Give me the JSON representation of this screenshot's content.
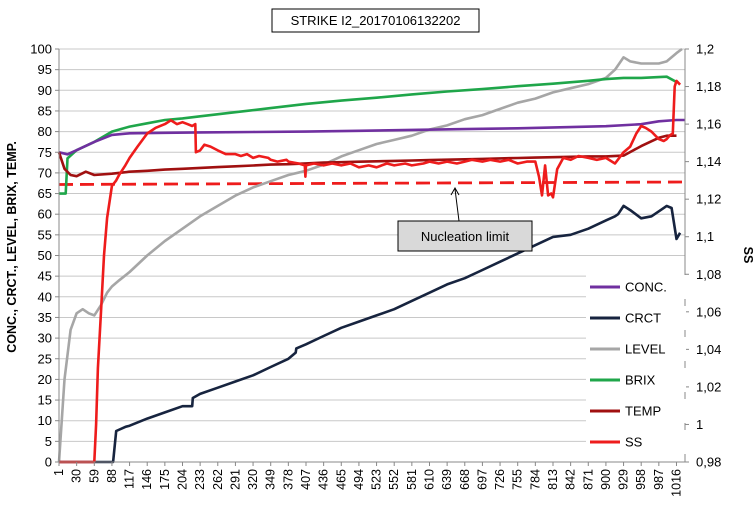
{
  "chart_data": {
    "type": "line",
    "title": "STRIKE I2_20170106132202",
    "ylabel": "CONC., CRCT., LEVEL, BRIX, TEMP.",
    "y2label": "SS",
    "ylim": [
      0,
      100
    ],
    "y2lim": [
      0.98,
      1.2
    ],
    "xlim": [
      1,
      1030
    ],
    "x_ticks": [
      1,
      30,
      59,
      88,
      117,
      146,
      175,
      204,
      233,
      262,
      291,
      320,
      349,
      378,
      407,
      436,
      465,
      494,
      523,
      552,
      581,
      610,
      639,
      668,
      697,
      726,
      755,
      784,
      813,
      842,
      871,
      900,
      929,
      958,
      987,
      1016
    ],
    "y_ticks": [
      0,
      5,
      10,
      15,
      20,
      25,
      30,
      35,
      40,
      45,
      50,
      55,
      60,
      65,
      70,
      75,
      80,
      85,
      90,
      95,
      100
    ],
    "y2_ticks": [
      "0,98",
      "1",
      "1,02",
      "1,04",
      "1,06",
      "1,08",
      "1,1",
      "1,12",
      "1,14",
      "1,16",
      "1,18",
      "1,2"
    ],
    "grid": "horizontal",
    "legend_position": "bottom-right",
    "annotation": {
      "text": "Nucleation limit",
      "points_to_x": 455,
      "points_to_y": 68
    },
    "colors": {
      "CONC.": "#7030a0",
      "CRCT": "#17243f",
      "LEVEL": "#a6a6a6",
      "BRIX": "#1fa64a",
      "TEMP": "#a01010",
      "SS": "#ee1c1c",
      "NUCLEATION": "#ee1c1c"
    },
    "series": [
      {
        "name": "CONC.",
        "axis": "left",
        "x": [
          1,
          15,
          30,
          59,
          88,
          117,
          175,
          233,
          320,
          407,
          494,
          581,
          668,
          755,
          842,
          900,
          958,
          987,
          1016,
          1030
        ],
        "values": [
          75,
          74.5,
          75.5,
          77.5,
          79.2,
          79.6,
          79.7,
          79.8,
          79.9,
          80,
          80.2,
          80.4,
          80.6,
          80.8,
          81.1,
          81.3,
          81.8,
          82.5,
          82.8,
          82.8
        ]
      },
      {
        "name": "CRCT",
        "axis": "left",
        "x": [
          1,
          30,
          59,
          88,
          90,
          95,
          110,
          117,
          146,
          175,
          204,
          220,
          221,
          233,
          262,
          291,
          320,
          349,
          378,
          390,
          391,
          407,
          436,
          465,
          494,
          523,
          552,
          581,
          610,
          639,
          668,
          697,
          726,
          755,
          784,
          813,
          842,
          871,
          900,
          915,
          920,
          929,
          940,
          958,
          975,
          990,
          1000,
          1008,
          1016,
          1022
        ],
        "values": [
          0,
          0,
          0,
          0,
          0,
          7.5,
          8.5,
          8.8,
          10.5,
          12,
          13.5,
          13.5,
          15.5,
          16.5,
          18,
          19.5,
          21,
          23,
          25,
          26.5,
          27.5,
          28.5,
          30.5,
          32.5,
          34,
          35.5,
          37,
          39,
          41,
          43,
          44.5,
          46.5,
          48.5,
          50.5,
          52.5,
          54.5,
          55,
          56.5,
          58.5,
          59.5,
          60,
          62,
          61,
          59,
          59.5,
          61,
          62,
          61.5,
          54,
          55.5
        ]
      },
      {
        "name": "LEVEL",
        "axis": "left",
        "x": [
          1,
          10,
          20,
          30,
          40,
          50,
          59,
          70,
          80,
          88,
          100,
          117,
          146,
          175,
          204,
          233,
          262,
          291,
          320,
          349,
          378,
          407,
          436,
          465,
          494,
          523,
          552,
          581,
          610,
          639,
          668,
          697,
          726,
          755,
          784,
          813,
          842,
          871,
          900,
          915,
          929,
          940,
          958,
          975,
          987,
          1000,
          1016,
          1025
        ],
        "values": [
          0,
          20,
          32,
          36,
          37,
          36,
          35.5,
          38,
          41,
          42.5,
          44,
          46,
          50,
          53.5,
          56.5,
          59.5,
          62,
          64.5,
          66.5,
          68,
          69.5,
          70.5,
          72,
          74,
          75.5,
          77,
          78,
          79,
          80.5,
          81.5,
          83,
          84,
          85.5,
          87,
          88,
          89.5,
          90.5,
          91.5,
          93,
          95,
          98,
          97,
          96.5,
          96.5,
          96.5,
          97,
          99,
          100
        ]
      },
      {
        "name": "BRIX",
        "axis": "left",
        "x": [
          1,
          12,
          15,
          30,
          59,
          88,
          117,
          146,
          175,
          204,
          233,
          291,
          349,
          407,
          465,
          523,
          581,
          639,
          697,
          755,
          813,
          871,
          900,
          929,
          958,
          987,
          1000,
          1016
        ],
        "values": [
          65,
          65,
          73.5,
          75.5,
          77.5,
          80,
          81.2,
          82,
          82.8,
          83.2,
          83.7,
          84.7,
          85.7,
          86.7,
          87.5,
          88.2,
          89,
          89.7,
          90.3,
          91,
          91.6,
          92.3,
          92.7,
          93,
          93,
          93.2,
          93.3,
          92
        ]
      },
      {
        "name": "TEMP",
        "axis": "left",
        "x": [
          1,
          10,
          20,
          30,
          45,
          59,
          88,
          117,
          146,
          175,
          204,
          233,
          262,
          291,
          320,
          349,
          378,
          407,
          436,
          465,
          494,
          523,
          552,
          581,
          610,
          639,
          668,
          697,
          726,
          755,
          784,
          813,
          842,
          871,
          900,
          929,
          958,
          987,
          1000,
          1016
        ],
        "values": [
          75,
          71,
          69.5,
          69.2,
          70.3,
          69.5,
          69.8,
          70.3,
          70.5,
          70.8,
          71,
          71.2,
          71.4,
          71.6,
          71.8,
          72,
          72.1,
          72.3,
          72.5,
          72.6,
          72.7,
          72.8,
          72.9,
          73,
          73.1,
          73.2,
          73.3,
          73.4,
          73.5,
          73.6,
          73.7,
          73.8,
          73.9,
          74,
          74,
          74.2,
          76.5,
          78.5,
          79,
          79
        ]
      },
      {
        "name": "SS",
        "axis": "right",
        "x": [
          1,
          5,
          10,
          15,
          20,
          30,
          40,
          50,
          59,
          62,
          65,
          70,
          75,
          80,
          88,
          95,
          100,
          110,
          117,
          130,
          146,
          160,
          175,
          185,
          195,
          204,
          212,
          220,
          225,
          226,
          233,
          240,
          250,
          262,
          275,
          291,
          300,
          310,
          320,
          330,
          345,
          349,
          360,
          375,
          378,
          395,
          405,
          406,
          407,
          420,
          436,
          450,
          465,
          480,
          494,
          510,
          523,
          540,
          552,
          570,
          581,
          600,
          610,
          625,
          639,
          655,
          668,
          680,
          697,
          710,
          726,
          740,
          755,
          770,
          784,
          790,
          795,
          800,
          805,
          810,
          813,
          820,
          830,
          842,
          855,
          871,
          885,
          900,
          915,
          929,
          940,
          950,
          958,
          965,
          975,
          987,
          995,
          1000,
          1005,
          1010,
          1013,
          1016,
          1022
        ],
        "values": [
          0.98,
          0.98,
          0.98,
          0.98,
          0.98,
          0.98,
          0.98,
          0.98,
          0.98,
          1.0,
          1.03,
          1.06,
          1.09,
          1.11,
          1.127,
          1.13,
          1.133,
          1.138,
          1.142,
          1.148,
          1.155,
          1.158,
          1.16,
          1.162,
          1.16,
          1.161,
          1.16,
          1.159,
          1.16,
          1.145,
          1.146,
          1.149,
          1.148,
          1.146,
          1.144,
          1.144,
          1.143,
          1.144,
          1.142,
          1.143,
          1.142,
          1.141,
          1.14,
          1.141,
          1.14,
          1.139,
          1.138,
          1.132,
          1.138,
          1.139,
          1.138,
          1.139,
          1.138,
          1.139,
          1.137,
          1.138,
          1.137,
          1.139,
          1.138,
          1.139,
          1.138,
          1.139,
          1.14,
          1.139,
          1.14,
          1.139,
          1.14,
          1.141,
          1.14,
          1.141,
          1.14,
          1.141,
          1.139,
          1.14,
          1.14,
          1.132,
          1.122,
          1.138,
          1.122,
          1.123,
          1.121,
          1.136,
          1.142,
          1.141,
          1.143,
          1.142,
          1.141,
          1.142,
          1.139,
          1.145,
          1.148,
          1.155,
          1.159,
          1.158,
          1.156,
          1.152,
          1.151,
          1.152,
          1.154,
          1.155,
          1.18,
          1.183,
          1.181
        ]
      },
      {
        "name": "NUCLEATION",
        "axis": "left",
        "style": "dashed",
        "x": [
          1,
          1030
        ],
        "values": [
          67.2,
          67.8
        ]
      }
    ],
    "legend_entries": [
      "CONC.",
      "CRCT",
      "LEVEL",
      "BRIX",
      "TEMP",
      "SS"
    ]
  }
}
